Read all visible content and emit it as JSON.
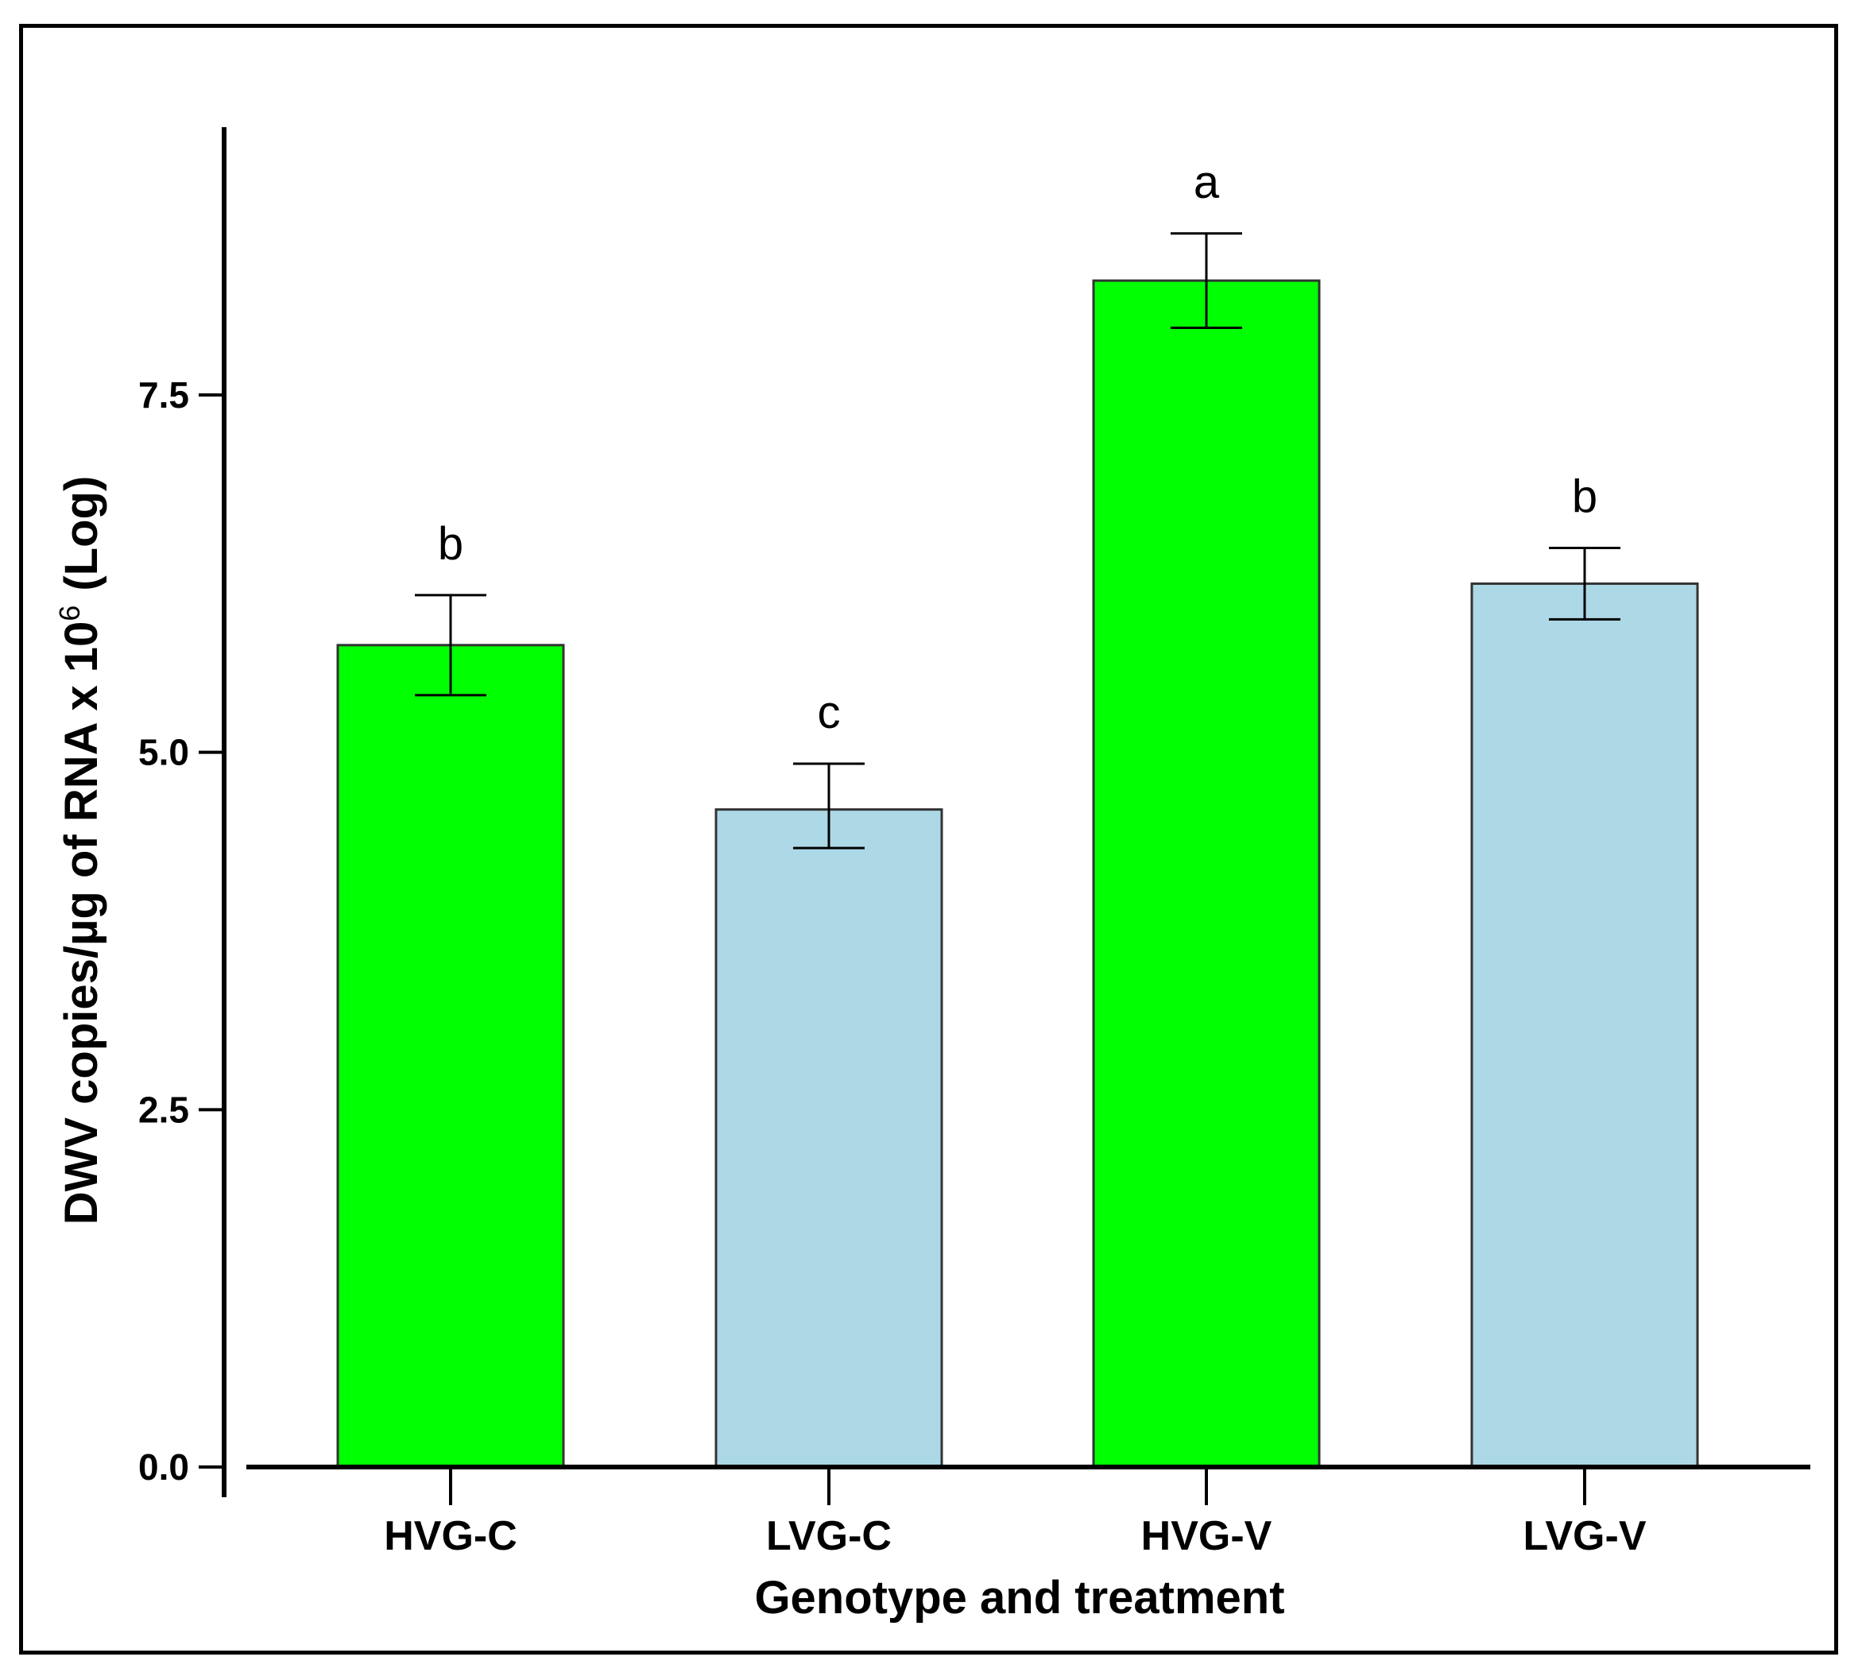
{
  "chart_data": {
    "type": "bar",
    "title": "",
    "xlabel": "Genotype and treatment",
    "ylabel": "DWV copies/µg of RNA x 10",
    "ylabel_superscript": "6",
    "ylabel_suffix": "(Log)",
    "ylim": [
      0,
      9.4
    ],
    "yticks": [
      0.0,
      2.5,
      5.0,
      7.5
    ],
    "ytick_labels": [
      "0.0",
      "2.5",
      "5.0",
      "7.5"
    ],
    "categories": [
      "HVG-C",
      "LVG-C",
      "HVG-V",
      "LVG-V"
    ],
    "values": [
      5.75,
      4.6,
      8.3,
      6.18
    ],
    "error_low": [
      5.4,
      4.33,
      7.97,
      5.93
    ],
    "error_high": [
      6.1,
      4.92,
      8.63,
      6.43
    ],
    "significance_letters": [
      "b",
      "c",
      "a",
      "b"
    ],
    "bar_colors": [
      "#00ff00",
      "#add8e6",
      "#00ff00",
      "#add8e6"
    ],
    "grid": false,
    "legend": "none"
  }
}
